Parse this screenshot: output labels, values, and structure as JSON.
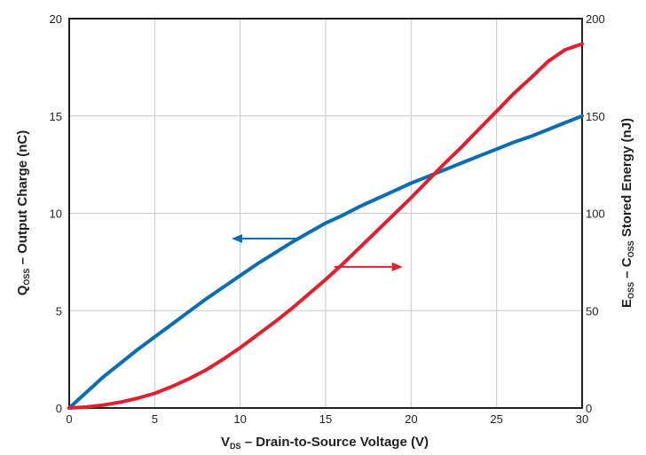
{
  "chart_data": {
    "type": "line",
    "title": "",
    "xlabel": {
      "main": "V",
      "sub": "DS",
      "rest": " – Drain-to-Source Voltage (V)"
    },
    "ylabel_left": {
      "main": "Q",
      "sub": "OSS",
      "rest": " – Output Charge (nC)"
    },
    "ylabel_right": {
      "main": "E",
      "sub": "OSS",
      "mid": " – C",
      "sub2": "OSS",
      "rest": " Stored Energy (nJ)"
    },
    "xlim": [
      0,
      30
    ],
    "ylim_left": [
      0,
      20
    ],
    "ylim_right": [
      0,
      200
    ],
    "x_ticks": [
      "0",
      "5",
      "10",
      "15",
      "20",
      "25",
      "30"
    ],
    "y_ticks_left": [
      "0",
      "5",
      "10",
      "15",
      "20"
    ],
    "y_ticks_right": [
      "0",
      "50",
      "100",
      "150",
      "200"
    ],
    "grid": true,
    "series": [
      {
        "axis": "left",
        "color": "#0a6eb4",
        "x": [
          0,
          1,
          2,
          3,
          4,
          5,
          6,
          7,
          8,
          9,
          10,
          11,
          12,
          13,
          14,
          15,
          16,
          17,
          18,
          19,
          20,
          21,
          22,
          23,
          24,
          25,
          26,
          27,
          28,
          29,
          30
        ],
        "values": [
          0,
          0.8,
          1.6,
          2.3,
          3.0,
          3.65,
          4.3,
          4.95,
          5.6,
          6.2,
          6.8,
          7.4,
          7.95,
          8.5,
          9.0,
          9.5,
          9.9,
          10.35,
          10.75,
          11.15,
          11.55,
          11.9,
          12.25,
          12.6,
          12.95,
          13.3,
          13.65,
          13.95,
          14.3,
          14.65,
          15.0
        ]
      },
      {
        "axis": "right",
        "color": "#e41f2d",
        "x": [
          0,
          1,
          2,
          3,
          4,
          5,
          6,
          7,
          8,
          9,
          10,
          11,
          12,
          13,
          14,
          15,
          16,
          17,
          18,
          19,
          20,
          21,
          22,
          23,
          24,
          25,
          26,
          27,
          28,
          29,
          30
        ],
        "values": [
          0,
          0.5,
          1.5,
          3,
          5,
          7.5,
          11,
          15,
          19.5,
          25,
          31,
          37.5,
          44,
          51,
          58.5,
          66,
          74,
          82.5,
          91,
          99.5,
          108,
          117,
          126,
          134.5,
          143.5,
          152.5,
          161.5,
          169.5,
          178,
          184,
          187
        ]
      }
    ],
    "annotations": [
      {
        "type": "arrow",
        "color": "#0a6eb4",
        "direction": "left",
        "from": [
          13.5,
          8.7
        ],
        "to": [
          9.5,
          8.7
        ],
        "refers_to": "left axis"
      },
      {
        "type": "arrow",
        "color": "#e41f2d",
        "direction": "right",
        "from": [
          15.5,
          72.5
        ],
        "to": [
          19.5,
          72.5
        ],
        "refers_to": "right axis"
      }
    ]
  }
}
